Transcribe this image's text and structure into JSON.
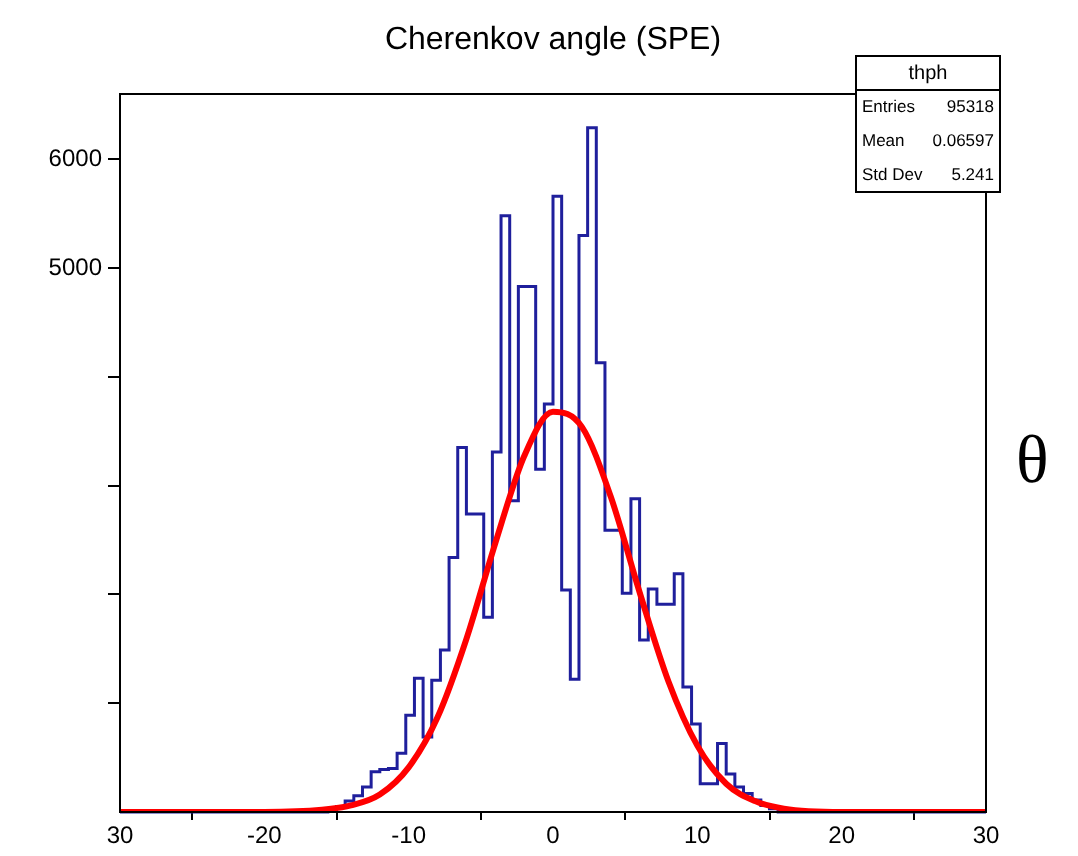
{
  "chart_data": {
    "type": "histogram",
    "title": "Cherenkov angle (SPE)",
    "bins": [
      -30,
      -29.4,
      -28.8,
      -28.2,
      -27.6,
      -27,
      -26.4,
      -25.8,
      -25.2,
      -24.6,
      -24,
      -23.4,
      -22.8,
      -22.2,
      -21.6,
      -21,
      -20.4,
      -19.8,
      -19.2,
      -18.6,
      -18,
      -17.4,
      -16.8,
      -16.2,
      -15.6,
      -15,
      -14.4,
      -13.8,
      -13.2,
      -12.6,
      -12,
      -11.4,
      -10.8,
      -10.2,
      -9.6,
      -9,
      -8.4,
      -7.8,
      -7.2,
      -6.6,
      -6,
      -5.4,
      -4.8,
      -4.2,
      -3.6,
      -3,
      -2.4,
      -1.8,
      -1.2,
      -0.6,
      0,
      0.6,
      1.2,
      1.8,
      2.4,
      3,
      3.6,
      4.2,
      4.8,
      5.4,
      6,
      6.6,
      7.2,
      7.8,
      8.4,
      9,
      9.6,
      10.2,
      10.8,
      11.4,
      12,
      12.6,
      13.2,
      13.8,
      14.4,
      15,
      15.6,
      16.2,
      16.8,
      17.4,
      18,
      18.6,
      19.2,
      19.8,
      20.4,
      21,
      21.6,
      22.2,
      22.8,
      23.4,
      24,
      24.6,
      25.2,
      25.8,
      26.4,
      27,
      27.6,
      28.2,
      28.8,
      29.4,
      30
    ],
    "series": [
      {
        "color": "#1f1f9c",
        "values": [
          0,
          0,
          0,
          0,
          0,
          0,
          0,
          0,
          0,
          0,
          0,
          0,
          0,
          0,
          0,
          0,
          0,
          0,
          0,
          0,
          0,
          0,
          0,
          0,
          20,
          50,
          100,
          150,
          230,
          370,
          390,
          400,
          540,
          890,
          1230,
          690,
          1210,
          1490,
          2340,
          3350,
          2740,
          2740,
          1790,
          3310,
          5480,
          2860,
          4830,
          4830,
          3150,
          3750,
          5660,
          2040,
          1220,
          5300,
          6290,
          4130,
          2590,
          2590,
          2010,
          2880,
          1580,
          2050,
          1910,
          1910,
          2190,
          1150,
          810,
          260,
          260,
          630,
          350,
          230,
          170,
          110,
          60,
          30,
          0,
          0,
          0,
          0,
          0,
          0,
          0,
          0,
          0,
          0,
          0,
          0,
          0,
          0,
          0,
          0,
          0,
          0,
          0,
          0,
          0,
          0,
          0,
          0
        ]
      },
      {
        "type": "line",
        "color": "#ff0000",
        "x": [
          -30,
          -20,
          -16,
          -14,
          -12,
          -10,
          -8,
          -6,
          -4,
          -2,
          0,
          2,
          4,
          6,
          8,
          10,
          12,
          14,
          16,
          20,
          30
        ],
        "values": [
          0,
          0,
          20,
          60,
          160,
          410,
          870,
          1590,
          2470,
          3270,
          3680,
          3540,
          2900,
          2020,
          1200,
          610,
          260,
          100,
          30,
          0,
          0
        ]
      }
    ],
    "xlim": [
      -30,
      30
    ],
    "xticks": [
      {
        "value": -30,
        "label": "30"
      },
      -20,
      -10,
      0,
      10,
      20,
      30
    ],
    "ylim": [
      0,
      6600
    ],
    "yticks": [
      {
        "value": 1000,
        "label": null
      },
      {
        "value": 2000,
        "label": null
      },
      {
        "value": 3000,
        "label": null
      },
      {
        "value": 4000,
        "label": null
      },
      5000,
      6000
    ],
    "grid": false,
    "legend": false,
    "annotations": [
      "thph",
      "Entries 95318",
      "Mean 0.06597",
      "Std Dev 5.241",
      "θ"
    ]
  }
}
